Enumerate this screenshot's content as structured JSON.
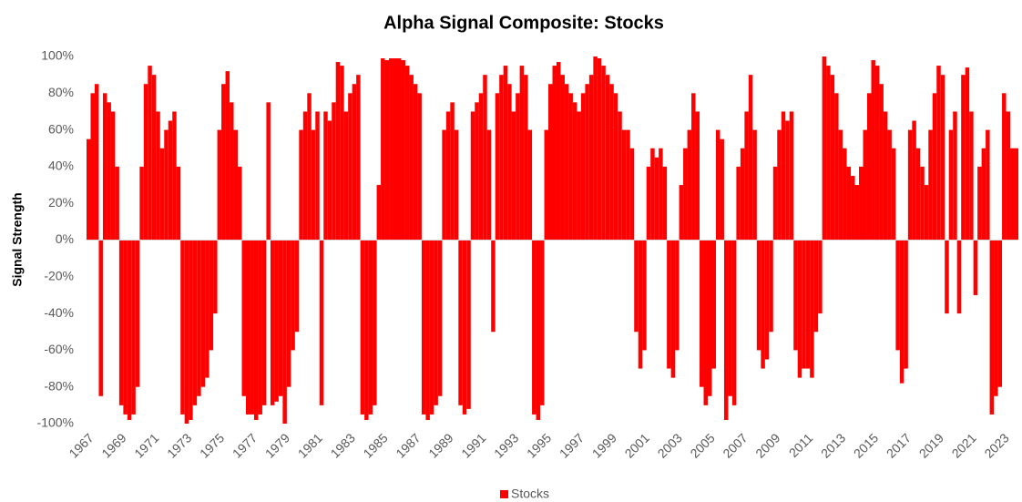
{
  "chart_data": {
    "type": "bar",
    "title": "Alpha Signal Composite: Stocks",
    "y_label": "Signal Strength",
    "color": "#ff0000",
    "series": [
      {
        "name": "Stocks",
        "color": "#ff0000",
        "values": [
          55,
          80,
          85,
          -85,
          80,
          75,
          70,
          40,
          -90,
          -95,
          -98,
          -95,
          -80,
          40,
          85,
          95,
          90,
          70,
          50,
          60,
          65,
          70,
          40,
          -95,
          -100,
          -98,
          -90,
          -85,
          -80,
          -75,
          -60,
          -40,
          60,
          85,
          92,
          75,
          60,
          40,
          -85,
          -95,
          -95,
          -98,
          -95,
          -90,
          75,
          -90,
          -88,
          -85,
          -100,
          -80,
          -60,
          -50,
          60,
          70,
          80,
          60,
          70,
          -90,
          70,
          65,
          75,
          97,
          95,
          70,
          80,
          85,
          90,
          -95,
          -98,
          -95,
          -90,
          30,
          99,
          98,
          99,
          99,
          99,
          98,
          95,
          90,
          85,
          80,
          -95,
          -98,
          -95,
          -90,
          -85,
          60,
          70,
          75,
          60,
          -90,
          -95,
          -92,
          70,
          75,
          80,
          90,
          60,
          -50,
          80,
          90,
          95,
          85,
          70,
          80,
          95,
          90,
          60,
          -95,
          -98,
          -90,
          60,
          85,
          95,
          97,
          90,
          85,
          80,
          75,
          70,
          80,
          85,
          90,
          100,
          99,
          95,
          90,
          85,
          80,
          70,
          60,
          60,
          50,
          -50,
          -70,
          -60,
          40,
          50,
          45,
          50,
          40,
          -70,
          -75,
          -60,
          30,
          50,
          60,
          80,
          70,
          -80,
          -90,
          -85,
          -70,
          60,
          55,
          -98,
          -85,
          -90,
          40,
          50,
          70,
          90,
          60,
          -60,
          -70,
          -65,
          -50,
          40,
          60,
          70,
          65,
          70,
          -60,
          -75,
          -70,
          -70,
          -75,
          -50,
          -40,
          100,
          95,
          90,
          80,
          60,
          50,
          40,
          35,
          30,
          40,
          60,
          80,
          98,
          95,
          85,
          70,
          60,
          50,
          -60,
          -78,
          -70,
          60,
          65,
          50,
          40,
          30,
          60,
          80,
          95,
          90,
          -40,
          60,
          70,
          -40,
          90,
          94,
          70,
          -30,
          40,
          50,
          60,
          -95,
          -85,
          -80,
          80,
          70,
          50,
          50
        ]
      }
    ],
    "x": [
      1967,
      1967.25,
      1967.5,
      1967.75,
      1968,
      1968.25,
      1968.5,
      1968.75,
      1969,
      1969.25,
      1969.5,
      1969.75,
      1970,
      1970.25,
      1970.5,
      1970.75,
      1971,
      1971.25,
      1971.5,
      1971.75,
      1972,
      1972.25,
      1972.5,
      1972.75,
      1973,
      1973.25,
      1973.5,
      1973.75,
      1974,
      1974.25,
      1974.5,
      1974.75,
      1975,
      1975.25,
      1975.5,
      1975.75,
      1976,
      1976.25,
      1976.5,
      1976.75,
      1977,
      1977.25,
      1977.5,
      1977.75,
      1978,
      1978.25,
      1978.5,
      1978.75,
      1979,
      1979.25,
      1979.5,
      1979.75,
      1980,
      1980.25,
      1980.5,
      1980.75,
      1981,
      1981.25,
      1981.5,
      1981.75,
      1982,
      1982.25,
      1982.5,
      1982.75,
      1983,
      1983.25,
      1983.5,
      1983.75,
      1984,
      1984.25,
      1984.5,
      1984.75,
      1985,
      1985.25,
      1985.5,
      1985.75,
      1986,
      1986.25,
      1986.5,
      1986.75,
      1987,
      1987.25,
      1987.5,
      1987.75,
      1988,
      1988.25,
      1988.5,
      1988.75,
      1989,
      1989.25,
      1989.5,
      1989.75,
      1990,
      1990.25,
      1990.5,
      1990.75,
      1991,
      1991.25,
      1991.5,
      1991.75,
      1992,
      1992.25,
      1992.5,
      1992.75,
      1993,
      1993.25,
      1993.5,
      1993.75,
      1994,
      1994.25,
      1994.5,
      1994.75,
      1995,
      1995.25,
      1995.5,
      1995.75,
      1996,
      1996.25,
      1996.5,
      1996.75,
      1997,
      1997.25,
      1997.5,
      1997.75,
      1998,
      1998.25,
      1998.5,
      1998.75,
      1999,
      1999.25,
      1999.5,
      1999.75,
      2000,
      2000.25,
      2000.5,
      2000.75,
      2001,
      2001.25,
      2001.5,
      2001.75,
      2002,
      2002.25,
      2002.5,
      2002.75,
      2003,
      2003.25,
      2003.5,
      2003.75,
      2004,
      2004.25,
      2004.5,
      2004.75,
      2005,
      2005.25,
      2005.5,
      2005.75,
      2006,
      2006.25,
      2006.5,
      2006.75,
      2007,
      2007.25,
      2007.5,
      2007.75,
      2008,
      2008.25,
      2008.5,
      2008.75,
      2009,
      2009.25,
      2009.5,
      2009.75,
      2010,
      2010.25,
      2010.5,
      2010.75,
      2011,
      2011.25,
      2011.5,
      2011.75,
      2012,
      2012.25,
      2012.5,
      2012.75,
      2013,
      2013.25,
      2013.5,
      2013.75,
      2014,
      2014.25,
      2014.5,
      2014.75,
      2015,
      2015.25,
      2015.5,
      2015.75,
      2016,
      2016.25,
      2016.5,
      2016.75,
      2017,
      2017.25,
      2017.5,
      2017.75,
      2018,
      2018.25,
      2018.5,
      2018.75,
      2019,
      2019.25,
      2019.5,
      2019.75,
      2020,
      2020.25,
      2020.5,
      2020.75,
      2021,
      2021.25,
      2021.5,
      2021.75,
      2022,
      2022.25,
      2022.5,
      2022.75,
      2023,
      2023.25,
      2023.5,
      2023.75
    ],
    "xlim": [
      1967,
      2024
    ],
    "xticks": [
      1967,
      1969,
      1971,
      1973,
      1975,
      1977,
      1979,
      1981,
      1983,
      1985,
      1987,
      1989,
      1991,
      1993,
      1995,
      1997,
      1999,
      2001,
      2003,
      2005,
      2007,
      2009,
      2011,
      2013,
      2015,
      2017,
      2019,
      2021,
      2023
    ],
    "ylim": [
      -100,
      100
    ],
    "yticks": [
      {
        "value": -100,
        "label": "-100%"
      },
      {
        "value": -80,
        "label": "-80%"
      },
      {
        "value": -60,
        "label": "-60%"
      },
      {
        "value": -40,
        "label": "-40%"
      },
      {
        "value": -20,
        "label": "-20%"
      },
      {
        "value": 0,
        "label": "0%"
      },
      {
        "value": 20,
        "label": "20%"
      },
      {
        "value": 40,
        "label": "40%"
      },
      {
        "value": 60,
        "label": "60%"
      },
      {
        "value": 80,
        "label": "80%"
      },
      {
        "value": 100,
        "label": "100%"
      }
    ],
    "grid": false,
    "legend": "bottom"
  }
}
